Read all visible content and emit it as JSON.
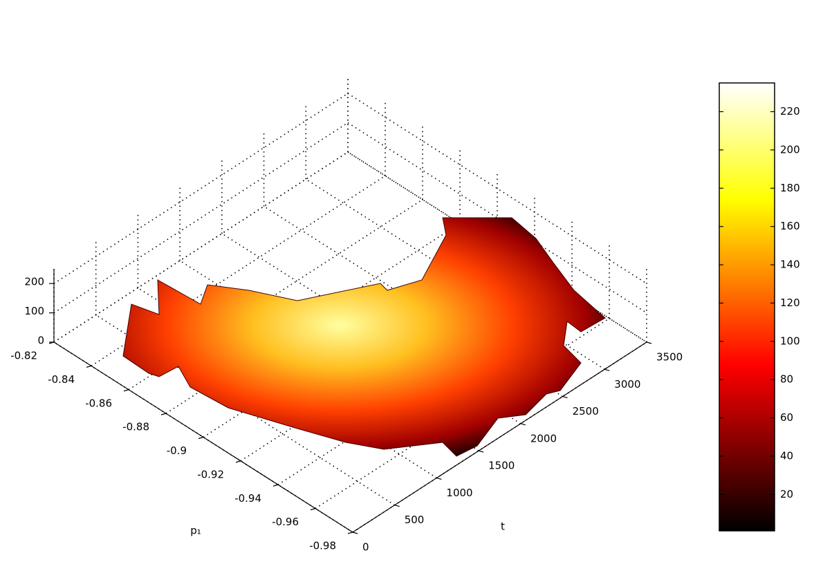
{
  "chart_data": {
    "type": "surface3d",
    "xlabel": "p₁",
    "ylabel": "t",
    "xlim": [
      -0.98,
      -0.82
    ],
    "xticks": [
      -0.82,
      -0.84,
      -0.86,
      -0.88,
      -0.9,
      -0.92,
      -0.94,
      -0.96,
      -0.98
    ],
    "ylim": [
      0,
      3500
    ],
    "yticks": [
      0,
      500,
      1000,
      1500,
      2000,
      2500,
      3000,
      3500
    ],
    "zlim": [
      0,
      250
    ],
    "zticks": [
      0,
      100,
      200
    ],
    "clim": [
      1,
      235
    ],
    "cticks": [
      20,
      40,
      60,
      80,
      100,
      120,
      140,
      160,
      180,
      200,
      220
    ],
    "grid": true
  }
}
